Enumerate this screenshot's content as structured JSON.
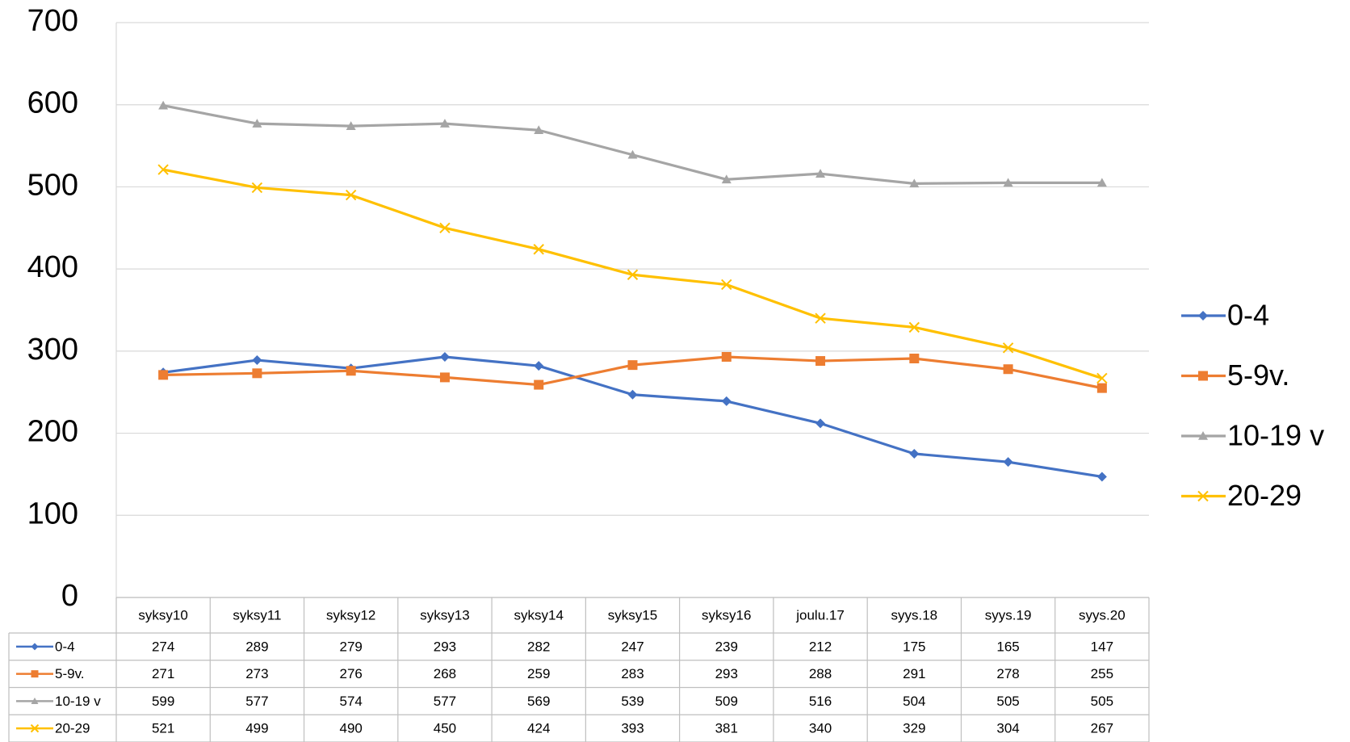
{
  "chart_data": {
    "type": "line",
    "categories": [
      "syksy10",
      "syksy11",
      "syksy12",
      "syksy13",
      "syksy14",
      "syksy15",
      "syksy16",
      "joulu.17",
      "syys.18",
      "syys.19",
      "syys.20"
    ],
    "series": [
      {
        "name": "0-4",
        "color": "#4472c4",
        "marker": "diamond",
        "values": [
          274,
          289,
          279,
          293,
          282,
          247,
          239,
          212,
          175,
          165,
          147
        ]
      },
      {
        "name": "5-9v.",
        "color": "#ed7d31",
        "marker": "square",
        "values": [
          271,
          273,
          276,
          268,
          259,
          283,
          293,
          288,
          291,
          278,
          255
        ]
      },
      {
        "name": "10-19 v",
        "color": "#a5a5a5",
        "marker": "triangle",
        "values": [
          599,
          577,
          574,
          577,
          569,
          539,
          509,
          516,
          504,
          505,
          505
        ]
      },
      {
        "name": "20-29",
        "color": "#ffc000",
        "marker": "x",
        "values": [
          521,
          499,
          490,
          450,
          424,
          393,
          381,
          340,
          329,
          304,
          267
        ]
      }
    ],
    "ylim": [
      0,
      700
    ],
    "yticks": [
      0,
      100,
      200,
      300,
      400,
      500,
      600,
      700
    ],
    "grid": true,
    "legend": "right",
    "data_table": true
  }
}
